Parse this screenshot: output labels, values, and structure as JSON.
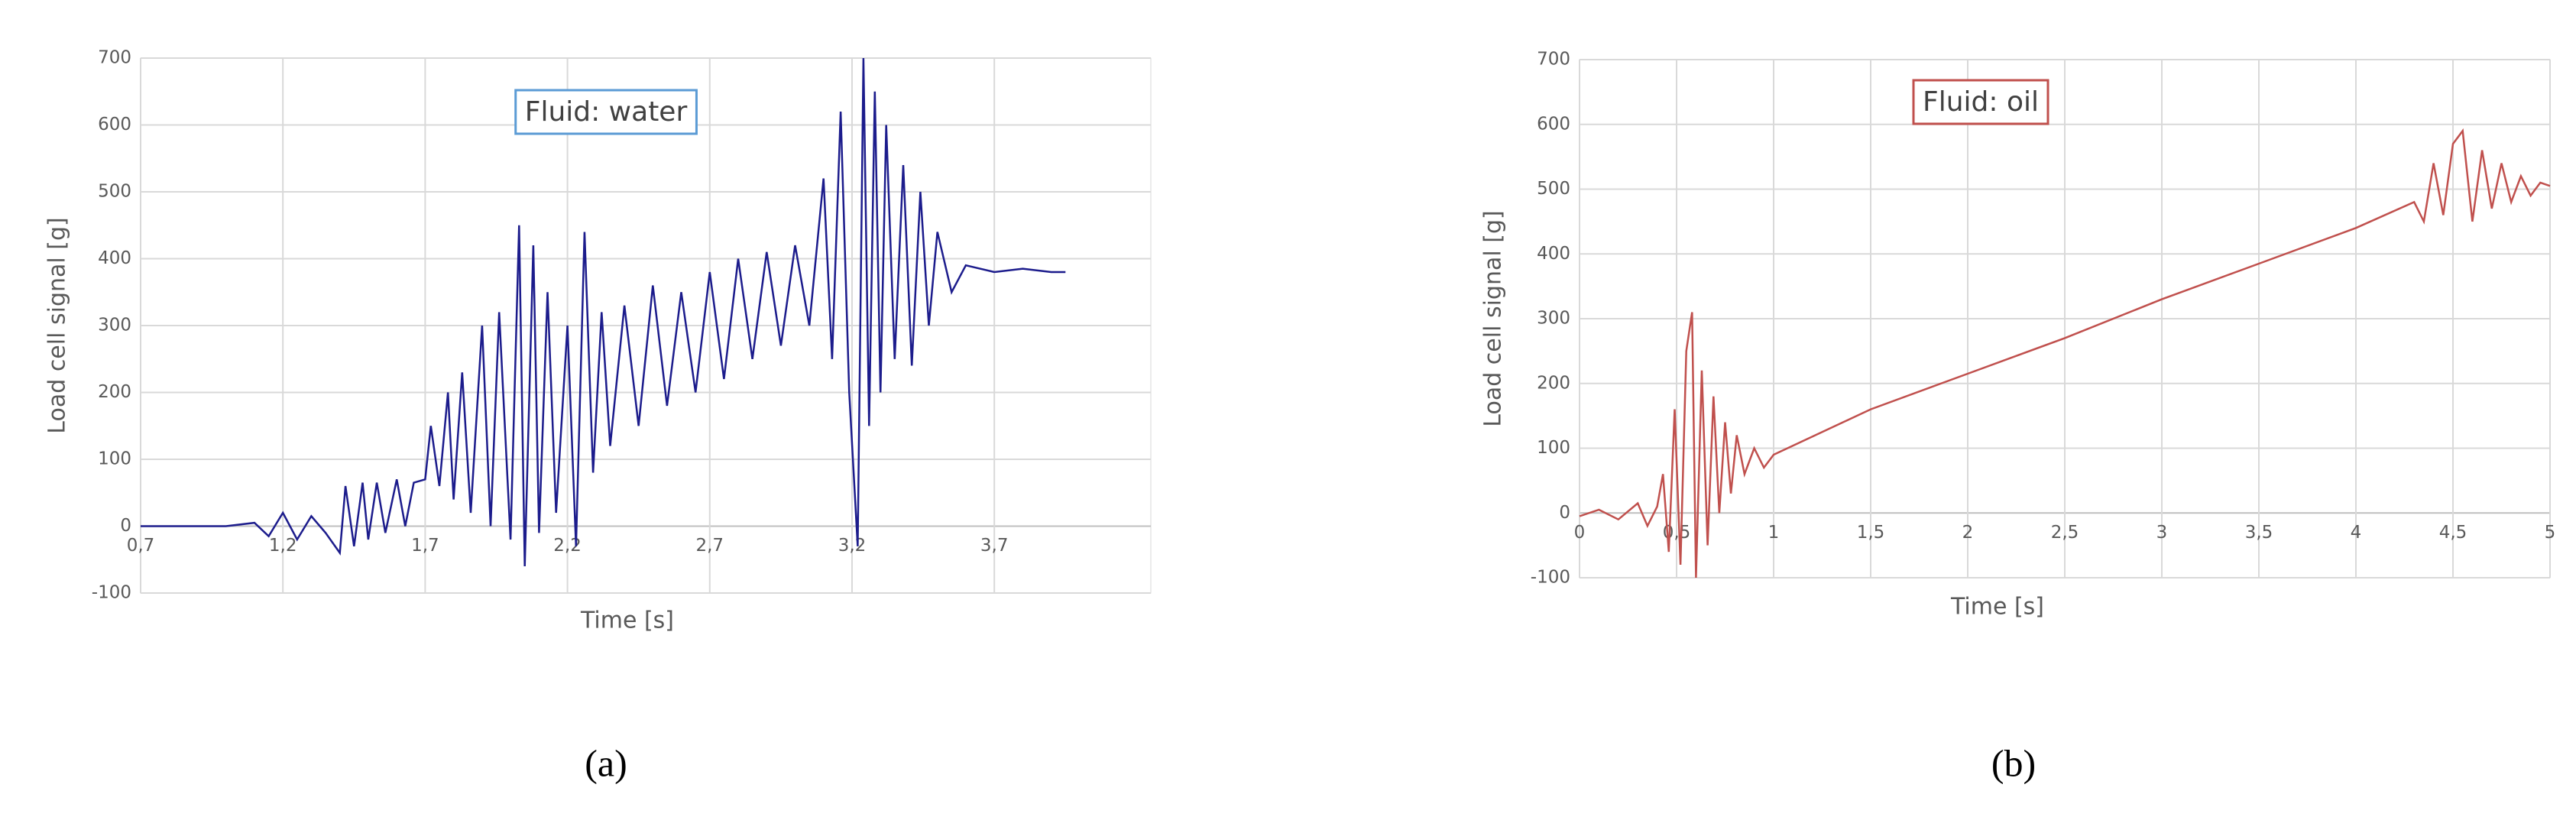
{
  "chart_data": [
    {
      "type": "line",
      "caption": "(a)",
      "annotation": "Fluid: water",
      "annotation_color": "#5b9bd5",
      "xlabel": "Time [s]",
      "ylabel": "Load cell signal [g]",
      "color": "#1c1c8c",
      "grid": true,
      "xlim": [
        0.7,
        4.25
      ],
      "ylim": [
        -100,
        700
      ],
      "xticks": [
        {
          "value": 0.7,
          "label": "0,7"
        },
        {
          "value": 1.2,
          "label": "1,2"
        },
        {
          "value": 1.7,
          "label": "1,7"
        },
        {
          "value": 2.2,
          "label": "2,2"
        },
        {
          "value": 2.7,
          "label": "2,7"
        },
        {
          "value": 3.2,
          "label": "3,2"
        },
        {
          "value": 3.7,
          "label": "3,7"
        }
      ],
      "yticks": [
        -100,
        0,
        100,
        200,
        300,
        400,
        500,
        600,
        700
      ],
      "x": [
        0.7,
        0.8,
        0.9,
        1.0,
        1.1,
        1.15,
        1.2,
        1.25,
        1.3,
        1.35,
        1.4,
        1.42,
        1.45,
        1.48,
        1.5,
        1.53,
        1.56,
        1.6,
        1.63,
        1.66,
        1.7,
        1.72,
        1.75,
        1.78,
        1.8,
        1.83,
        1.86,
        1.9,
        1.93,
        1.96,
        2.0,
        2.03,
        2.05,
        2.08,
        2.1,
        2.13,
        2.16,
        2.2,
        2.23,
        2.26,
        2.29,
        2.32,
        2.35,
        2.4,
        2.45,
        2.5,
        2.55,
        2.6,
        2.65,
        2.7,
        2.75,
        2.8,
        2.85,
        2.9,
        2.95,
        3.0,
        3.05,
        3.1,
        3.13,
        3.16,
        3.19,
        3.22,
        3.24,
        3.26,
        3.28,
        3.3,
        3.32,
        3.35,
        3.38,
        3.41,
        3.44,
        3.47,
        3.5,
        3.55,
        3.6,
        3.7,
        3.8,
        3.9,
        3.95
      ],
      "values": [
        0,
        0,
        0,
        0,
        5,
        -15,
        20,
        -20,
        15,
        -10,
        -40,
        60,
        -30,
        65,
        -20,
        65,
        -10,
        70,
        0,
        65,
        70,
        150,
        60,
        200,
        40,
        230,
        20,
        300,
        0,
        320,
        -20,
        450,
        -60,
        420,
        -10,
        350,
        20,
        300,
        -30,
        440,
        80,
        320,
        120,
        330,
        150,
        360,
        180,
        350,
        200,
        380,
        220,
        400,
        250,
        410,
        270,
        420,
        300,
        520,
        250,
        620,
        200,
        -30,
        700,
        150,
        650,
        200,
        600,
        250,
        540,
        240,
        500,
        300,
        440,
        350,
        390,
        380,
        385,
        380,
        380
      ]
    },
    {
      "type": "line",
      "caption": "(b)",
      "annotation": "Fluid: oil",
      "annotation_color": "#c0504d",
      "xlabel": "Time [s]",
      "ylabel": "Load cell signal [g]",
      "color": "#c0504d",
      "grid": true,
      "xlim": [
        0,
        5
      ],
      "ylim": [
        -100,
        700
      ],
      "xticks": [
        0,
        {
          "value": 0.5,
          "label": "0,5"
        },
        1,
        {
          "value": 1.5,
          "label": "1,5"
        },
        2,
        {
          "value": 2.5,
          "label": "2,5"
        },
        3,
        {
          "value": 3.5,
          "label": "3,5"
        },
        4,
        {
          "value": 4.5,
          "label": "4,5"
        },
        5
      ],
      "yticks": [
        -100,
        0,
        100,
        200,
        300,
        400,
        500,
        600,
        700
      ],
      "x": [
        0,
        0.1,
        0.2,
        0.3,
        0.35,
        0.4,
        0.43,
        0.46,
        0.49,
        0.52,
        0.55,
        0.58,
        0.6,
        0.63,
        0.66,
        0.69,
        0.72,
        0.75,
        0.78,
        0.81,
        0.85,
        0.9,
        0.95,
        1.0,
        1.5,
        2.0,
        2.5,
        3.0,
        3.5,
        4.0,
        4.3,
        4.35,
        4.4,
        4.45,
        4.5,
        4.55,
        4.6,
        4.65,
        4.7,
        4.75,
        4.8,
        4.85,
        4.9,
        4.95,
        5.0
      ],
      "values": [
        -5,
        5,
        -10,
        15,
        -20,
        10,
        60,
        -60,
        160,
        -80,
        250,
        310,
        -100,
        220,
        -50,
        180,
        0,
        140,
        30,
        120,
        60,
        100,
        70,
        90,
        160,
        215,
        270,
        330,
        385,
        440,
        480,
        450,
        540,
        460,
        570,
        590,
        450,
        560,
        470,
        540,
        480,
        520,
        490,
        510,
        505
      ]
    }
  ]
}
